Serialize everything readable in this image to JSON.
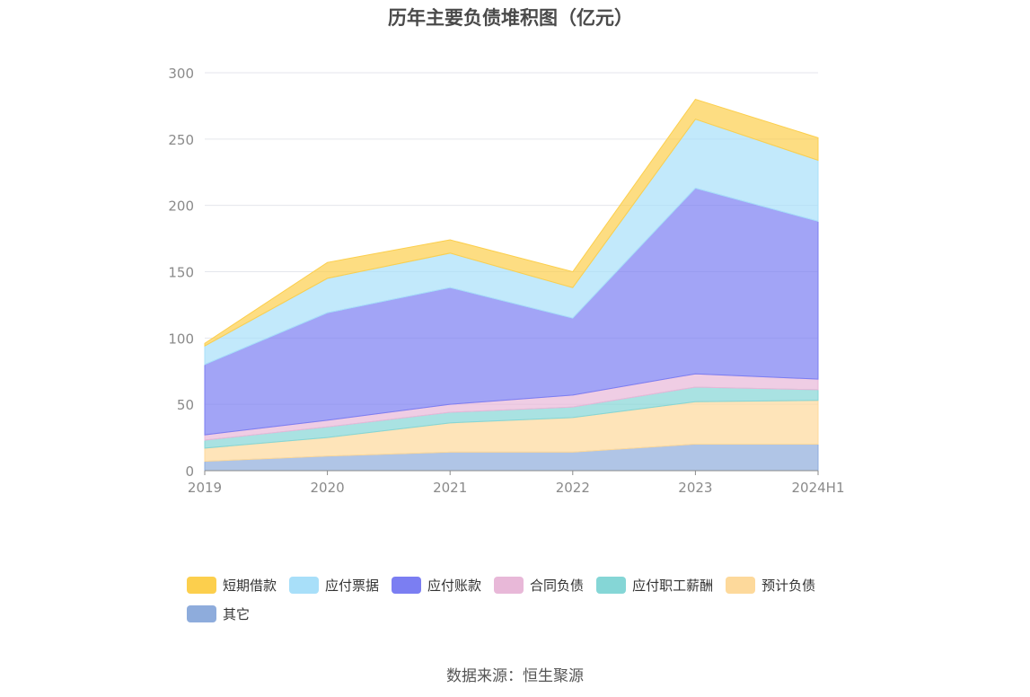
{
  "chart_data": {
    "type": "area",
    "stacked": true,
    "title": "历年主要负债堆积图（亿元）",
    "categories": [
      "2019",
      "2020",
      "2021",
      "2022",
      "2023",
      "2024H1"
    ],
    "ylim": [
      0,
      300
    ],
    "yticks": [
      0,
      50,
      100,
      150,
      200,
      250,
      300
    ],
    "grid": true,
    "legend_position": "bottom",
    "series": [
      {
        "name": "其它",
        "color": "#8eacdc",
        "values": [
          7,
          11,
          14,
          14,
          20,
          20
        ]
      },
      {
        "name": "预计负债",
        "color": "#fdd99b",
        "values": [
          10,
          14,
          22,
          26,
          32,
          33
        ]
      },
      {
        "name": "应付职工薪酬",
        "color": "#85d6d6",
        "values": [
          6,
          8,
          8,
          8,
          11,
          8
        ]
      },
      {
        "name": "合同负债",
        "color": "#e8b8d8",
        "values": [
          4,
          5,
          6,
          9,
          10,
          8
        ]
      },
      {
        "name": "应付账款",
        "color": "#7b7ef2",
        "values": [
          53,
          81,
          88,
          58,
          140,
          119
        ]
      },
      {
        "name": "应付票据",
        "color": "#a8dff9",
        "values": [
          14,
          26,
          26,
          23,
          52,
          46
        ]
      },
      {
        "name": "短期借款",
        "color": "#fccf4d",
        "values": [
          2,
          12,
          10,
          12,
          15,
          17
        ]
      }
    ],
    "legend_order": [
      "短期借款",
      "应付票据",
      "应付账款",
      "合同负债",
      "应付职工薪酬",
      "预计负债",
      "其它"
    ]
  },
  "source_text": "数据来源：恒生聚源"
}
